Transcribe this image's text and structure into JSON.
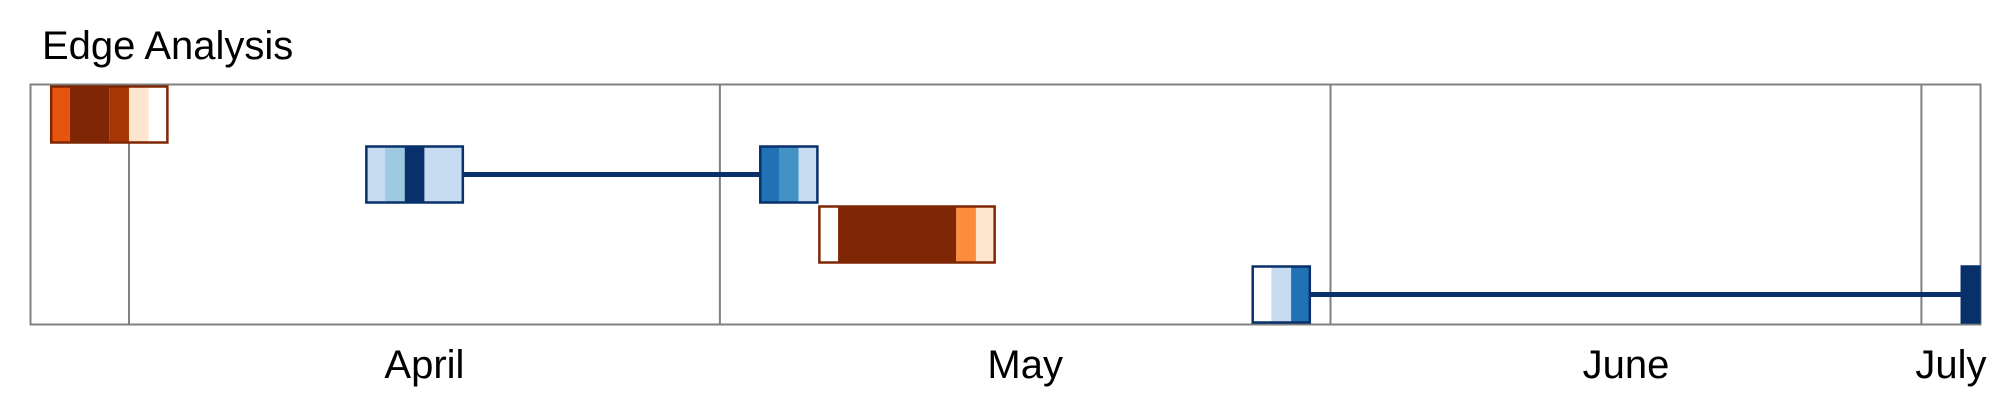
{
  "chart_data": {
    "type": "timeline",
    "title": "Edge Analysis",
    "x_axis": {
      "type": "date",
      "range": [
        "2024-03-27",
        "2024-07-04"
      ],
      "month_labels": [
        {
          "label": "April",
          "start": "2024-04-01",
          "end": "2024-05-01"
        },
        {
          "label": "May",
          "start": "2024-05-01",
          "end": "2024-06-01"
        },
        {
          "label": "June",
          "start": "2024-06-01",
          "end": "2024-07-01"
        },
        {
          "label": "July",
          "start": "2024-07-01",
          "end": "2024-07-04"
        }
      ],
      "month_boundaries": [
        "2024-04-01",
        "2024-05-01",
        "2024-06-01",
        "2024-07-01"
      ]
    },
    "grid": false,
    "rows": [
      {
        "lane": 1,
        "palette": "oranges",
        "border_color": "#7f2704",
        "segments": [
          {
            "start": "2024-03-28",
            "end": "2024-03-29",
            "color": "#e6550d"
          },
          {
            "start": "2024-03-29",
            "end": "2024-03-31",
            "color": "#7f2704"
          },
          {
            "start": "2024-03-31",
            "end": "2024-04-01",
            "color": "#a63603"
          },
          {
            "start": "2024-04-01",
            "end": "2024-04-02",
            "color": "#fee6ce"
          },
          {
            "start": "2024-04-02",
            "end": "2024-04-03",
            "color": "#ffffff"
          }
        ],
        "connector": null
      },
      {
        "lane": 2,
        "palette": "blues",
        "border_color": "#08306b",
        "segments": [
          {
            "start": "2024-04-13",
            "end": "2024-04-14",
            "color": "#c6dbef"
          },
          {
            "start": "2024-04-14",
            "end": "2024-04-15",
            "color": "#9ecae1"
          },
          {
            "start": "2024-04-15",
            "end": "2024-04-16",
            "color": "#08306b"
          },
          {
            "start": "2024-04-16",
            "end": "2024-04-18",
            "color": "#c6dbef"
          },
          {
            "start": "2024-05-03",
            "end": "2024-05-04",
            "color": "#2171b5"
          },
          {
            "start": "2024-05-04",
            "end": "2024-05-05",
            "color": "#4292c6"
          },
          {
            "start": "2024-05-05",
            "end": "2024-05-06",
            "color": "#c6dbef"
          }
        ],
        "connector": {
          "start": "2024-04-18",
          "end": "2024-05-03",
          "color": "#08306b"
        }
      },
      {
        "lane": 3,
        "palette": "oranges",
        "border_color": "#7f2704",
        "segments": [
          {
            "start": "2024-05-06",
            "end": "2024-05-07",
            "color": "#ffffff"
          },
          {
            "start": "2024-05-07",
            "end": "2024-05-13",
            "color": "#7f2704"
          },
          {
            "start": "2024-05-13",
            "end": "2024-05-14",
            "color": "#fd8d3c"
          },
          {
            "start": "2024-05-14",
            "end": "2024-05-15",
            "color": "#fee6ce"
          }
        ],
        "connector": null
      },
      {
        "lane": 4,
        "palette": "blues",
        "border_color": "#08306b",
        "segments": [
          {
            "start": "2024-05-28",
            "end": "2024-05-29",
            "color": "#ffffff"
          },
          {
            "start": "2024-05-29",
            "end": "2024-05-30",
            "color": "#c6dbef"
          },
          {
            "start": "2024-05-30",
            "end": "2024-05-31",
            "color": "#2171b5"
          },
          {
            "start": "2024-07-03",
            "end": "2024-07-04",
            "color": "#08306b"
          }
        ],
        "connector": {
          "start": "2024-05-31",
          "end": "2024-07-03",
          "color": "#08306b"
        }
      }
    ]
  }
}
